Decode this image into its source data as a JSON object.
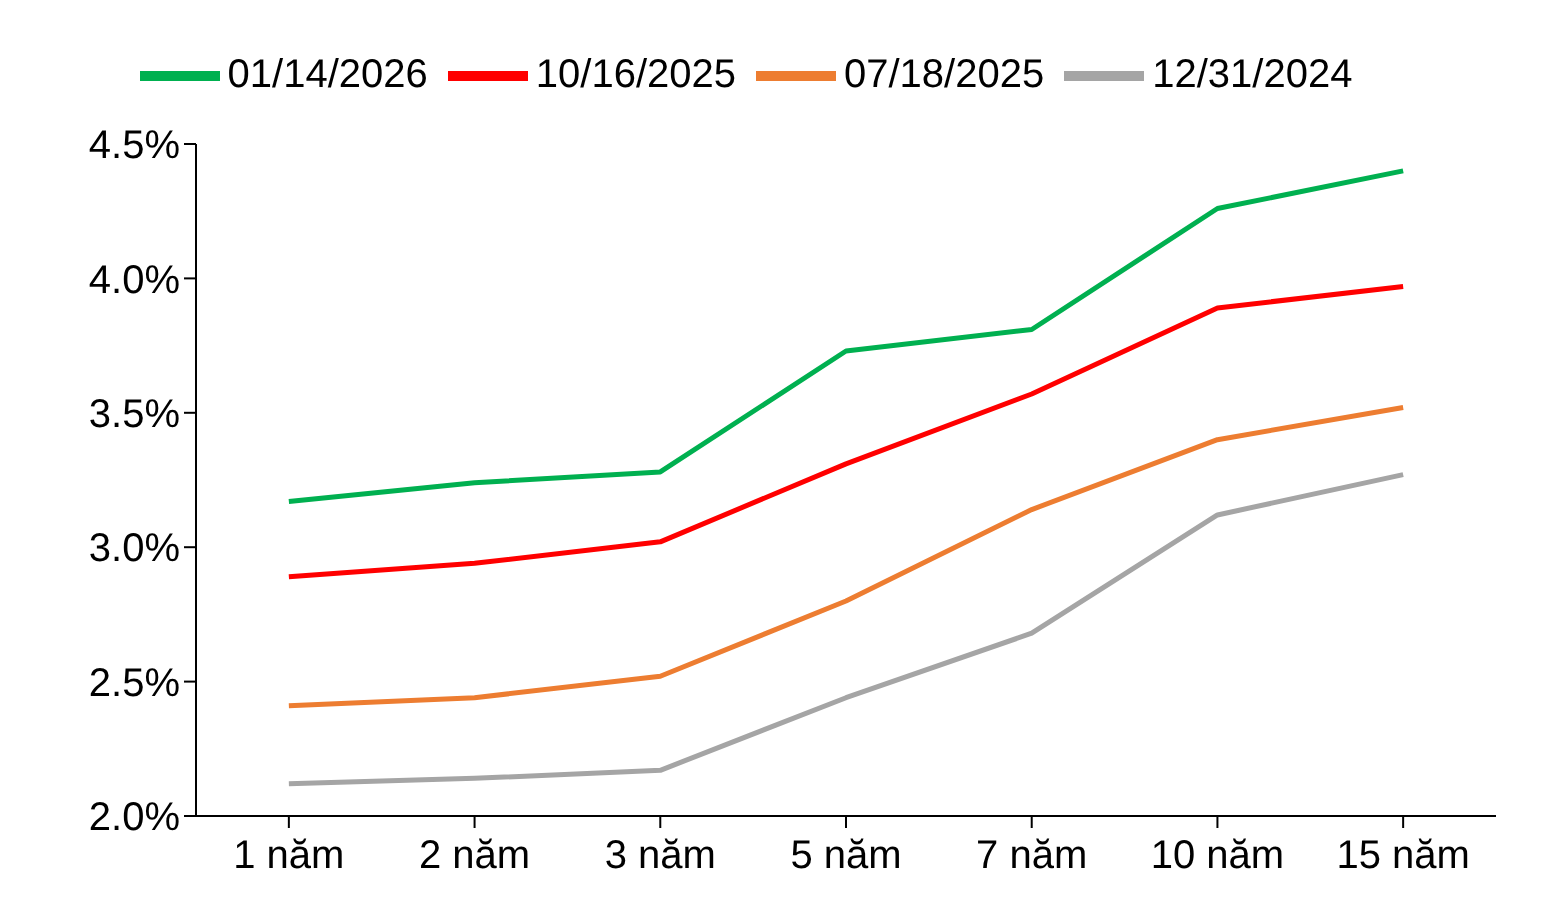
{
  "chart_data": {
    "type": "line",
    "categories": [
      "1 năm",
      "2 năm",
      "3 năm",
      "5 năm",
      "7 năm",
      "10 năm",
      "15 năm"
    ],
    "series": [
      {
        "name": "01/14/2026",
        "color": "#00b050",
        "values": [
          3.17,
          3.24,
          3.28,
          3.73,
          3.81,
          4.26,
          4.4
        ]
      },
      {
        "name": "10/16/2025",
        "color": "#ff0000",
        "values": [
          2.89,
          2.94,
          3.02,
          3.31,
          3.57,
          3.89,
          3.97
        ]
      },
      {
        "name": "07/18/2025",
        "color": "#ed7d31",
        "values": [
          2.41,
          2.44,
          2.52,
          2.8,
          3.14,
          3.4,
          3.52
        ]
      },
      {
        "name": "12/31/2024",
        "color": "#a5a5a5",
        "values": [
          2.12,
          2.14,
          2.17,
          2.44,
          2.68,
          3.12,
          3.27
        ]
      }
    ],
    "ylim": [
      2.0,
      4.5
    ],
    "yticks": [
      {
        "value": 2.0,
        "label": "2.0%"
      },
      {
        "value": 2.5,
        "label": "2.5%"
      },
      {
        "value": 3.0,
        "label": "3.0%"
      },
      {
        "value": 3.5,
        "label": "3.5%"
      },
      {
        "value": 4.0,
        "label": "4.0%"
      },
      {
        "value": 4.5,
        "label": "4.5%"
      }
    ],
    "legend": "top",
    "marker": "none",
    "line_style": "solid",
    "grid": false
  }
}
